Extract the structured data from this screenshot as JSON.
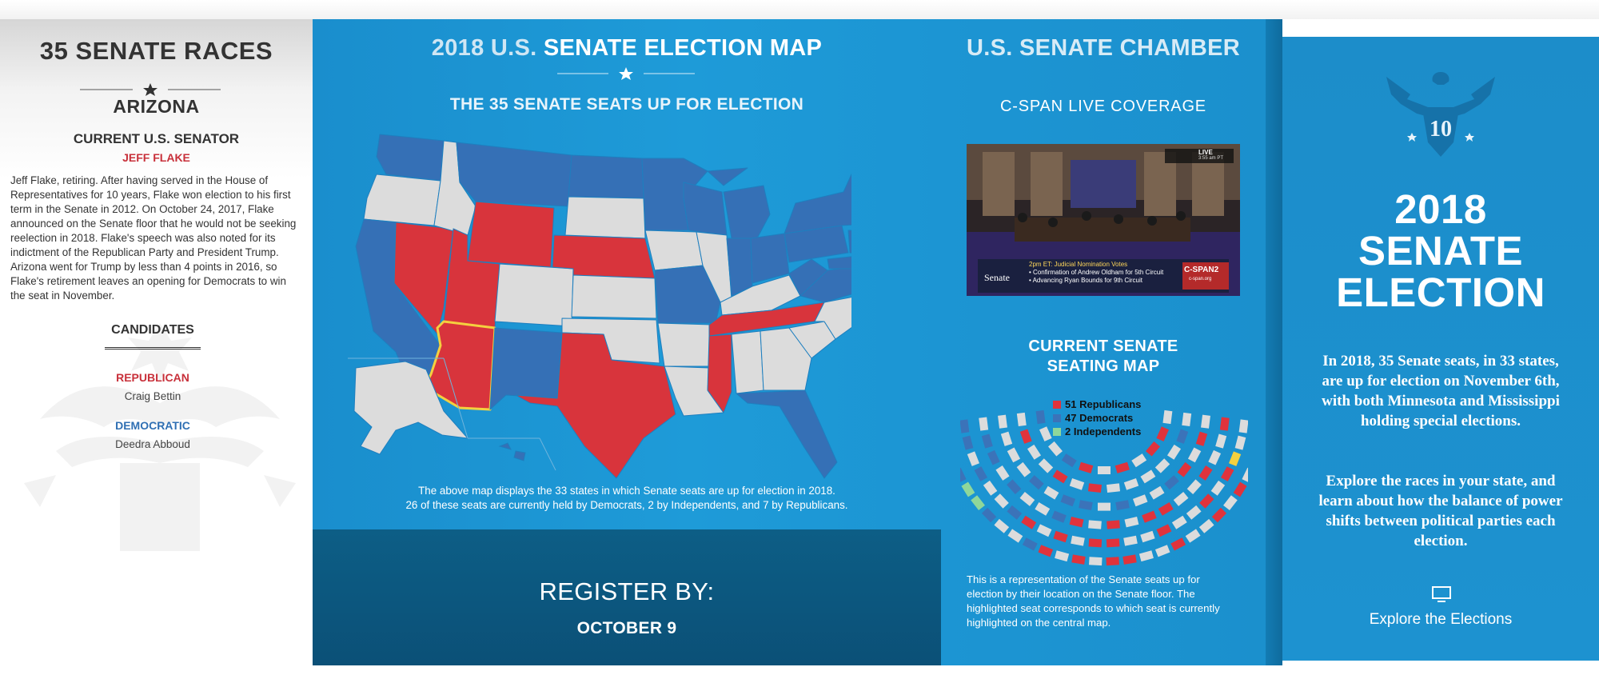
{
  "left": {
    "title": "35 SENATE RACES",
    "state": "ARIZONA",
    "current_label": "CURRENT U.S. SENATOR",
    "senator": "JEFF FLAKE",
    "bio": "Jeff Flake, retiring. After having served in the House of Representatives for 10 years, Flake won election to his first term in the Senate in 2012. On October 24, 2017, Flake announced on the Senate floor that he would not be seeking reelection in 2018. Flake's speech was also noted for its indictment of the Republican Party and President Trump. Arizona went for Trump by less than 4 points in 2016, so Flake's retirement leaves an opening for Democrats to win the seat in November.",
    "candidates_label": "CANDIDATES",
    "republican_label": "REPUBLICAN",
    "republican_candidate": "Craig Bettin",
    "democratic_label": "DEMOCRATIC",
    "democratic_candidate": "Deedra Abboud"
  },
  "map": {
    "title_part1": "2018 U.S.",
    "title_part2": "SENATE ELECTION MAP",
    "subtitle": "THE 35 SENATE SEATS UP FOR ELECTION",
    "caption_line1": "The above map displays the 33 states in which Senate seats are up for election in 2018.",
    "caption_line2": "26 of these seats are currently held by Democrats, 2 by Independents, and 7 by Republicans.",
    "register_label": "REGISTER BY:",
    "register_date": "OCTOBER 9"
  },
  "chamber": {
    "title": "U.S. SENATE CHAMBER",
    "video_label": "C-SPAN LIVE COVERAGE",
    "video_live": "LIVE",
    "video_time": "3:55 am PT",
    "video_brand": "Senate",
    "video_line1": "2pm ET: Judicial Nomination Votes",
    "video_line2": "• Confirmation of Andrew Oldham for 5th Circuit",
    "video_line3": "• Advancing Ryan Bounds for 9th Circuit",
    "video_channel": "C-SPAN2",
    "video_site": "c-span.org",
    "seating_title_line1": "CURRENT SENATE",
    "seating_title_line2": "SEATING MAP",
    "legend": [
      {
        "label": "51 Republicans",
        "color": "#e0333c"
      },
      {
        "label": "47 Democrats",
        "color": "#3b73b9"
      },
      {
        "label": "2 Independents",
        "color": "#8fd79a"
      }
    ],
    "description": "This is a representation of the Senate seats up for election by their location on the Senate floor. The highlighted seat corresponds to which seat is currently highlighted on the central map."
  },
  "info": {
    "eagle_number": "10",
    "headline_line1": "2018",
    "headline_line2": "SENATE",
    "headline_line3": "ELECTION",
    "paragraph1": "In 2018, 35 Senate seats, in 33 states, are up for election on November 6th, with both Minnesota and Mississippi holding special elections.",
    "paragraph2": "Explore the races in your state, and learn about how the balance of power shifts between political parties each election.",
    "explore_label": "Explore the Elections"
  },
  "colors": {
    "republican": "#d8343c",
    "democrat": "#3570b6",
    "independent": "#3aa847",
    "not_up": "#dcdcdc",
    "highlight": "#f4d03f",
    "panel_blue": "#1c95d3",
    "register_bg": "#0c5780"
  }
}
